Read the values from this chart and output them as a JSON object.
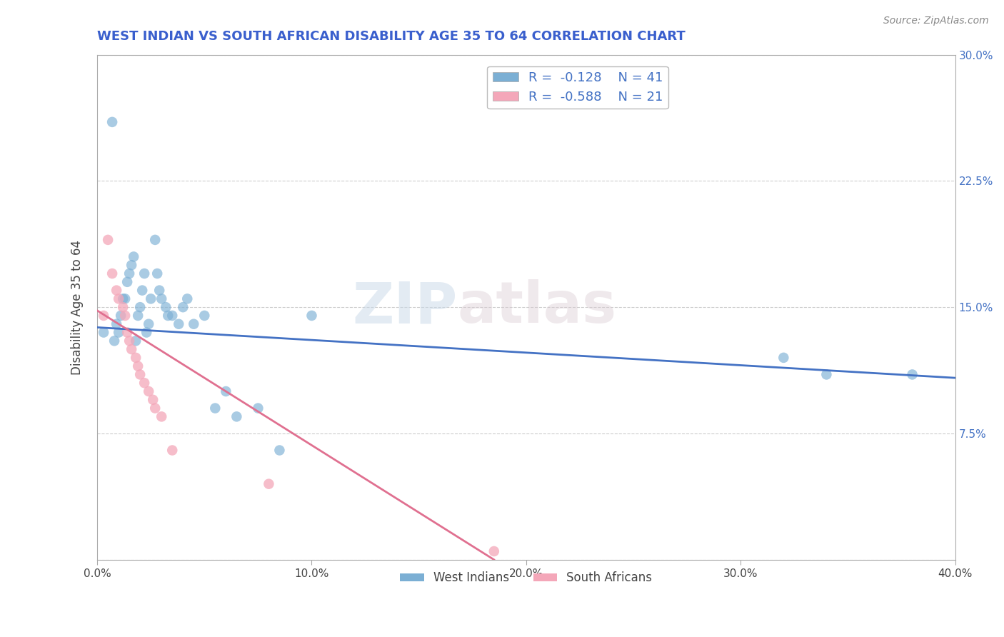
{
  "title": "WEST INDIAN VS SOUTH AFRICAN DISABILITY AGE 35 TO 64 CORRELATION CHART",
  "source": "Source: ZipAtlas.com",
  "xlabel": "",
  "ylabel": "Disability Age 35 to 64",
  "xlim": [
    0.0,
    0.4
  ],
  "ylim": [
    0.0,
    0.3
  ],
  "xticks": [
    0.0,
    0.1,
    0.2,
    0.3,
    0.4
  ],
  "xticklabels": [
    "0.0%",
    "10.0%",
    "20.0%",
    "30.0%",
    "40.0%"
  ],
  "yticks_right": [
    0.075,
    0.15,
    0.225,
    0.3
  ],
  "yticklabels_right": [
    "7.5%",
    "15.0%",
    "22.5%",
    "30.0%"
  ],
  "title_color": "#3a5fcd",
  "title_fontsize": 13,
  "watermark_zip": "ZIP",
  "watermark_atlas": "atlas",
  "blue_color": "#7bafd4",
  "pink_color": "#f4a7b9",
  "blue_line_color": "#4472c4",
  "pink_line_color": "#e07090",
  "legend_r_blue": "R =  -0.128",
  "legend_n_blue": "N = 41",
  "legend_r_pink": "R =  -0.588",
  "legend_n_pink": "N = 21",
  "blue_line_x0": 0.0,
  "blue_line_y0": 0.138,
  "blue_line_x1": 0.4,
  "blue_line_y1": 0.108,
  "pink_line_x0": 0.0,
  "pink_line_y0": 0.148,
  "pink_line_x1": 0.185,
  "pink_line_y1": 0.0,
  "west_indians_x": [
    0.003,
    0.007,
    0.008,
    0.009,
    0.01,
    0.011,
    0.012,
    0.013,
    0.014,
    0.015,
    0.016,
    0.017,
    0.018,
    0.019,
    0.02,
    0.021,
    0.022,
    0.023,
    0.024,
    0.025,
    0.027,
    0.028,
    0.029,
    0.03,
    0.032,
    0.033,
    0.035,
    0.038,
    0.04,
    0.042,
    0.045,
    0.05,
    0.055,
    0.06,
    0.065,
    0.075,
    0.085,
    0.1,
    0.32,
    0.34,
    0.38
  ],
  "west_indians_y": [
    0.135,
    0.26,
    0.13,
    0.14,
    0.135,
    0.145,
    0.155,
    0.155,
    0.165,
    0.17,
    0.175,
    0.18,
    0.13,
    0.145,
    0.15,
    0.16,
    0.17,
    0.135,
    0.14,
    0.155,
    0.19,
    0.17,
    0.16,
    0.155,
    0.15,
    0.145,
    0.145,
    0.14,
    0.15,
    0.155,
    0.14,
    0.145,
    0.09,
    0.1,
    0.085,
    0.09,
    0.065,
    0.145,
    0.12,
    0.11,
    0.11
  ],
  "south_africans_x": [
    0.003,
    0.005,
    0.007,
    0.009,
    0.01,
    0.012,
    0.013,
    0.014,
    0.015,
    0.016,
    0.018,
    0.019,
    0.02,
    0.022,
    0.024,
    0.026,
    0.027,
    0.03,
    0.035,
    0.08,
    0.185
  ],
  "south_africans_y": [
    0.145,
    0.19,
    0.17,
    0.16,
    0.155,
    0.15,
    0.145,
    0.135,
    0.13,
    0.125,
    0.12,
    0.115,
    0.11,
    0.105,
    0.1,
    0.095,
    0.09,
    0.085,
    0.065,
    0.045,
    0.005
  ],
  "marker_size": 110,
  "background_color": "#ffffff",
  "grid_color": "#cccccc"
}
